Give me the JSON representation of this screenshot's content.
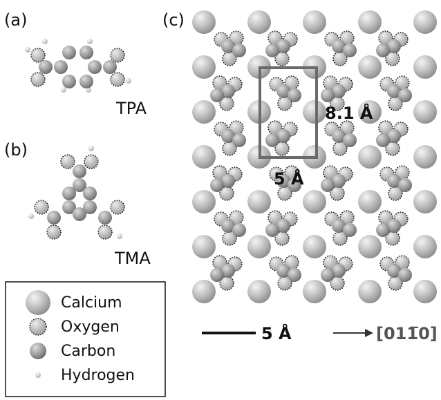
{
  "panels": {
    "a": {
      "label": "(a)",
      "molecule": "TPA"
    },
    "b": {
      "label": "(b)",
      "molecule": "TMA"
    },
    "c": {
      "label": "(c)",
      "cell_long": "8.1 Å",
      "cell_short": "5 Å",
      "scale_bar": "5 Å",
      "direction": "[011̅0]"
    }
  },
  "legend": {
    "items": [
      "Calcium",
      "Oxygen",
      "Carbon",
      "Hydrogen"
    ]
  }
}
